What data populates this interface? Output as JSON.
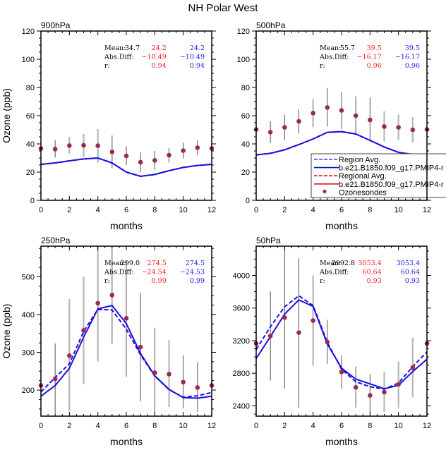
{
  "figure_title": "NH Polar West",
  "colors": {
    "model_line": "#1c10e0",
    "obs_point": "#9b2a52",
    "errbar_dark": "#555555",
    "errbar_light": "#b8b8b8",
    "stat_ref": "#ff1a1a",
    "stat_test": "#1a1aff"
  },
  "legend": {
    "entries": [
      {
        "label": "Region Avg.",
        "style": "dashed",
        "color": "#3a3af0"
      },
      {
        "label": "b.e21.B1850.f09_g17.PMIP4-r",
        "style": "solid",
        "color": "#1010c0"
      },
      {
        "label": "Regional Avg.",
        "style": "dashed",
        "color": "#e01010"
      },
      {
        "label": "b.e21.B1850.f09_g17.PMIP4-r",
        "style": "solid",
        "color": "#e01010"
      },
      {
        "label": "Ozonesondes",
        "style": "marker",
        "color": "#9b2a52"
      }
    ]
  },
  "chart_data": [
    {
      "type": "line",
      "title": "900hPa",
      "xlabel": "months",
      "ylabel": "Ozone (ppb)",
      "xlim": [
        0,
        12
      ],
      "ylim": [
        0,
        120
      ],
      "xticks": [
        0,
        2,
        4,
        6,
        8,
        10,
        12
      ],
      "yticks": [
        0,
        20,
        40,
        60,
        80,
        100,
        120
      ],
      "x": [
        0,
        1,
        2,
        3,
        4,
        5,
        6,
        7,
        8,
        9,
        10,
        11,
        12
      ],
      "series": [
        {
          "name": "Region Avg. (dashed)",
          "values": [
            25.5,
            26.5,
            28,
            29.3,
            30,
            26.5,
            20,
            17,
            18.3,
            21,
            23.3,
            24.7,
            25.5
          ]
        },
        {
          "name": "b.e21.B1850.f09_g17.PMIP4-r (solid)",
          "values": [
            25.5,
            26.5,
            28,
            29.3,
            30,
            26.5,
            20,
            17,
            18.3,
            21,
            23.3,
            24.7,
            25.5
          ]
        },
        {
          "name": "Ozonesondes",
          "values": [
            36.8,
            36.3,
            38.8,
            39,
            38.7,
            34.3,
            31.5,
            27,
            28.3,
            32,
            35.2,
            37.3,
            36.8
          ],
          "err_low": [
            null,
            30.3,
            32.8,
            30.7,
            26.7,
            22.7,
            25,
            20,
            21.7,
            26.7,
            29.7,
            32,
            null
          ],
          "err_high": [
            null,
            42.5,
            44.8,
            47,
            50.5,
            46,
            38.3,
            34,
            35,
            37.3,
            40.7,
            42.5,
            null
          ],
          "err_light": [
            false,
            false,
            true,
            true,
            true,
            false,
            false,
            false,
            false,
            false,
            false,
            false,
            false
          ]
        }
      ],
      "stats": {
        "labels": [
          "Mean:",
          "Abs.Diff:",
          "r:"
        ],
        "obs_mean": "34.7",
        "ref": [
          "24.2",
          "−10.49",
          "0.94"
        ],
        "test": [
          "24.2",
          "−10.49",
          "0.94"
        ]
      }
    },
    {
      "type": "line",
      "title": "500hPa",
      "xlabel": "months",
      "ylabel": "",
      "xlim": [
        0,
        12
      ],
      "ylim": [
        0,
        120
      ],
      "xticks": [
        0,
        2,
        4,
        6,
        8,
        10,
        12
      ],
      "yticks": [
        0,
        20,
        40,
        60,
        80,
        100,
        120
      ],
      "x": [
        0,
        1,
        2,
        3,
        4,
        5,
        6,
        7,
        8,
        9,
        10,
        11,
        12
      ],
      "series": [
        {
          "name": "Region Avg. (dashed)",
          "values": [
            32.2,
            33.3,
            35.8,
            39.5,
            43.5,
            48.2,
            48.7,
            47,
            42.5,
            37.8,
            34,
            32.5,
            32
          ]
        },
        {
          "name": "b.e21.B1850.f09_g17.PMIP4-r (solid)",
          "values": [
            32.2,
            33.3,
            35.8,
            39.5,
            43.5,
            48.2,
            48.7,
            47,
            42.5,
            37.8,
            34,
            32.5,
            32
          ]
        },
        {
          "name": "Ozonesondes",
          "values": [
            50.2,
            48.3,
            51.7,
            56,
            61.8,
            65.8,
            63.7,
            60,
            57,
            52.3,
            51.7,
            50,
            50.2
          ],
          "err_low": [
            null,
            40.7,
            42.7,
            47.3,
            52,
            52.3,
            50.7,
            47.3,
            41.3,
            41.7,
            43,
            41,
            null
          ],
          "err_high": [
            null,
            56,
            60.7,
            64.7,
            71.7,
            79.7,
            76.7,
            73.7,
            73,
            63.2,
            60.7,
            59,
            null
          ],
          "err_light": [
            false,
            false,
            false,
            false,
            false,
            false,
            false,
            false,
            false,
            true,
            true,
            true,
            false
          ]
        }
      ],
      "stats": {
        "labels": [
          "Mean:",
          "Abs.Diff:",
          "r:"
        ],
        "obs_mean": "55.7",
        "ref": [
          "39.5",
          "−16.17",
          "0.96"
        ],
        "test": [
          "39.5",
          "−16.17",
          "0.96"
        ]
      }
    },
    {
      "type": "line",
      "title": "250hPa",
      "xlabel": "months",
      "ylabel": "Ozone (ppb)",
      "xlim": [
        0,
        12
      ],
      "ylim": [
        131,
        581
      ],
      "xticks": [
        0,
        2,
        4,
        6,
        8,
        10,
        12
      ],
      "yticks": [
        200,
        300,
        400,
        500
      ],
      "x": [
        0,
        1,
        2,
        3,
        4,
        5,
        6,
        7,
        8,
        9,
        10,
        11,
        12
      ],
      "series": [
        {
          "name": "Region Avg. (dashed)",
          "values": [
            194.9,
            233.6,
            269.6,
            355,
            413.7,
            412,
            361,
            293,
            237,
            201,
            181,
            185,
            193.5
          ]
        },
        {
          "name": "b.e21.B1850.f09_g17.PMIP4-r (solid)",
          "values": [
            183.8,
            212.3,
            257.8,
            340,
            415,
            424,
            376,
            296.6,
            238,
            201.9,
            180,
            178.7,
            183.8
          ]
        },
        {
          "name": "Ozonesondes",
          "values": [
            212.3,
            229.9,
            291,
            358,
            430,
            451.5,
            390,
            313.8,
            245.9,
            242.2,
            221,
            206.7,
            212.3
          ],
          "err_low": [
            null,
            136.6,
            143.3,
            216,
            275.7,
            323,
            235.4,
            170.7,
            131,
            155.2,
            151.5,
            142.2,
            null
          ],
          "err_high": [
            null,
            324,
            441.5,
            500.6,
            581,
            577,
            543,
            457.9,
            364.7,
            331.9,
            292.5,
            273.9,
            null
          ],
          "err_light": [
            false,
            false,
            true,
            true,
            true,
            false,
            false,
            false,
            false,
            false,
            false,
            false,
            false
          ]
        }
      ],
      "stats": {
        "labels": [
          "Mean:",
          "Abs.Diff:",
          "r:"
        ],
        "obs_mean": "299.0",
        "ref": [
          "274.5",
          "−24.54",
          "0.99"
        ],
        "test": [
          "274.5",
          "−24.53",
          "0.99"
        ]
      }
    },
    {
      "type": "line",
      "title": "50hPa",
      "xlabel": "months",
      "ylabel": "",
      "xlim": [
        0,
        12
      ],
      "ylim": [
        2274,
        4359
      ],
      "xticks": [
        0,
        2,
        4,
        6,
        8,
        10,
        12
      ],
      "yticks": [
        2400,
        2800,
        3200,
        3600,
        4000
      ],
      "x": [
        0,
        1,
        2,
        3,
        4,
        5,
        6,
        7,
        8,
        9,
        10,
        11,
        12
      ],
      "series": [
        {
          "name": "Region Avg. (dashed)",
          "values": [
            3091,
            3370,
            3616,
            3751,
            3630,
            3180,
            2849,
            2696,
            2635,
            2605,
            2681,
            2880,
            3062
          ]
        },
        {
          "name": "b.e21.B1850.f09_g17.PMIP4-r (solid)",
          "values": [
            2981,
            3250,
            3526,
            3700,
            3619,
            3160,
            2863,
            2728,
            2670,
            2610,
            2653,
            2820,
            2973
          ]
        },
        {
          "name": "Ozonesondes",
          "values": [
            3166,
            3258,
            3483,
            3299,
            3446,
            3183,
            2817,
            2627,
            2529,
            2569,
            2664,
            2869,
            3166
          ],
          "err_low": [
            null,
            2711,
            2610,
            2379,
            2889,
            2915,
            2612,
            2379,
            2274,
            2324,
            2379,
            2503,
            null
          ],
          "err_high": [
            null,
            3803,
            4359,
            4210,
            4002,
            3457,
            3019,
            2884,
            2791,
            2820,
            2947,
            3235,
            null
          ],
          "err_light": [
            false,
            false,
            false,
            false,
            false,
            false,
            false,
            false,
            false,
            true,
            true,
            true,
            false
          ]
        }
      ],
      "stats": {
        "labels": [
          "Mean:",
          "Abs.Diff:",
          "r:"
        ],
        "obs_mean": "2992.8",
        "ref": [
          "3053.4",
          "60.64",
          "0.93"
        ],
        "test": [
          "3053.4",
          "60.64",
          "0.93"
        ]
      }
    }
  ]
}
